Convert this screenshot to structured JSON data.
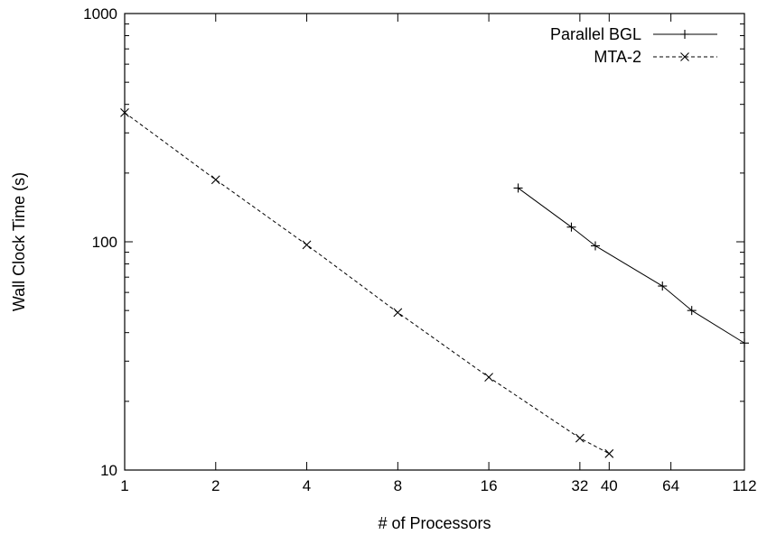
{
  "chart_data": {
    "type": "line",
    "title": "",
    "xlabel": "# of Processors",
    "ylabel": "Wall Clock Time (s)",
    "x_scale": "log",
    "y_scale": "log",
    "xlim": [
      1,
      112
    ],
    "ylim": [
      10,
      1000
    ],
    "x_ticks": [
      1,
      2,
      4,
      8,
      16,
      32,
      40,
      64,
      112
    ],
    "x_tick_labels": [
      "1",
      "2",
      "4",
      "8",
      "16",
      "32",
      "40",
      "64",
      "112"
    ],
    "y_ticks": [
      10,
      100,
      1000
    ],
    "y_tick_labels": [
      "10",
      "100",
      "1000"
    ],
    "grid": false,
    "legend_position": "top-right",
    "series": [
      {
        "name": "Parallel BGL",
        "marker": "plus",
        "line_style": "solid",
        "color": "#000000",
        "x": [
          20,
          30,
          36,
          60,
          75,
          112
        ],
        "y": [
          172,
          116,
          96,
          64,
          50,
          36
        ]
      },
      {
        "name": "MTA-2",
        "marker": "cross",
        "line_style": "dashed",
        "color": "#000000",
        "x": [
          1,
          2,
          4,
          8,
          16,
          32,
          40
        ],
        "y": [
          368,
          187,
          97,
          49,
          25.5,
          13.8,
          11.8
        ]
      }
    ]
  }
}
